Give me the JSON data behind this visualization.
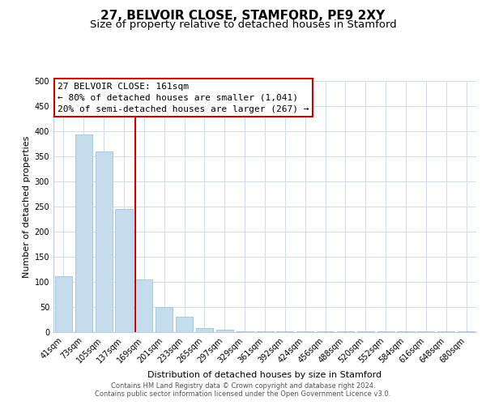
{
  "title": "27, BELVOIR CLOSE, STAMFORD, PE9 2XY",
  "subtitle": "Size of property relative to detached houses in Stamford",
  "xlabel": "Distribution of detached houses by size in Stamford",
  "ylabel": "Number of detached properties",
  "bar_labels": [
    "41sqm",
    "73sqm",
    "105sqm",
    "137sqm",
    "169sqm",
    "201sqm",
    "233sqm",
    "265sqm",
    "297sqm",
    "329sqm",
    "361sqm",
    "392sqm",
    "424sqm",
    "456sqm",
    "488sqm",
    "520sqm",
    "552sqm",
    "584sqm",
    "616sqm",
    "648sqm",
    "680sqm"
  ],
  "bar_values": [
    112,
    393,
    360,
    245,
    105,
    50,
    30,
    8,
    5,
    2,
    1,
    1,
    1,
    1,
    1,
    1,
    1,
    1,
    1,
    1,
    1
  ],
  "bar_color": "#c5dced",
  "bar_edge_color": "#a8c8e0",
  "vline_x_index": 4,
  "vline_color": "#cc0000",
  "annotation_title": "27 BELVOIR CLOSE: 161sqm",
  "annotation_line1": "← 80% of detached houses are smaller (1,041)",
  "annotation_line2": "20% of semi-detached houses are larger (267) →",
  "annotation_box_color": "#ffffff",
  "annotation_box_edge": "#cc0000",
  "ylim": [
    0,
    500
  ],
  "yticks": [
    0,
    50,
    100,
    150,
    200,
    250,
    300,
    350,
    400,
    450,
    500
  ],
  "footer1": "Contains HM Land Registry data © Crown copyright and database right 2024.",
  "footer2": "Contains public sector information licensed under the Open Government Licence v3.0.",
  "bg_color": "#ffffff",
  "grid_color": "#d0dce8",
  "title_fontsize": 11,
  "subtitle_fontsize": 9.5,
  "tick_fontsize": 7,
  "axis_label_fontsize": 8,
  "annotation_fontsize": 8,
  "footer_fontsize": 6
}
